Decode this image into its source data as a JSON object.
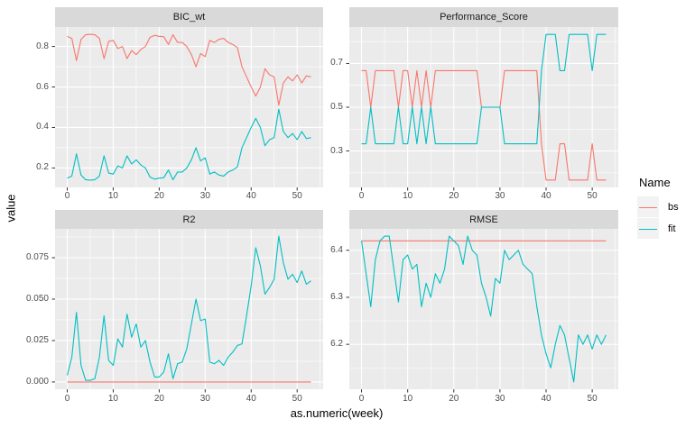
{
  "figure": {
    "x_axis_title": "as.numeric(week)",
    "y_axis_title": "value"
  },
  "colors": {
    "panel_background": "#EBEBEB",
    "strip_background": "#D9D9D9",
    "grid": "#FFFFFF",
    "tick_mark": "#333333",
    "axis_text": "#4D4D4D",
    "series_bs": "#F8766D",
    "series_fit": "#00BFC4"
  },
  "chart_data": {
    "type": "line",
    "x_label": "as.numeric(week)",
    "y_label": "value",
    "legend_position": "right",
    "grid": true,
    "legend": {
      "title": "Name",
      "series": [
        {
          "label": "bs",
          "color": "#F8766D"
        },
        {
          "label": "fit",
          "color": "#00BFC4"
        }
      ]
    },
    "x": [
      0,
      1,
      2,
      3,
      4,
      5,
      6,
      7,
      8,
      9,
      10,
      11,
      12,
      13,
      14,
      15,
      16,
      17,
      18,
      19,
      20,
      21,
      22,
      23,
      24,
      25,
      26,
      27,
      28,
      29,
      30,
      31,
      32,
      33,
      34,
      35,
      36,
      37,
      38,
      39,
      40,
      41,
      42,
      43,
      44,
      45,
      46,
      47,
      48,
      49,
      50,
      51,
      52,
      53
    ],
    "xlim": [
      -2.65,
      55.65
    ],
    "xticks": [
      0,
      10,
      20,
      30,
      40,
      50
    ],
    "xtick_labels": [
      "0",
      "10",
      "20",
      "30",
      "40",
      "50"
    ],
    "xminor": [
      5,
      15,
      25,
      35,
      45,
      55
    ],
    "facets": [
      {
        "title": "BIC_wt",
        "ylim": [
          0.104,
          0.896
        ],
        "yticks": [
          0.2,
          0.4,
          0.6,
          0.8
        ],
        "ytick_labels": [
          "0.2",
          "0.4",
          "0.6",
          "0.8"
        ],
        "yminor": [
          0.1,
          0.3,
          0.5,
          0.7
        ],
        "series": {
          "bs": [
            0.85,
            0.84,
            0.73,
            0.835,
            0.858,
            0.86,
            0.858,
            0.84,
            0.74,
            0.825,
            0.83,
            0.79,
            0.8,
            0.74,
            0.78,
            0.76,
            0.785,
            0.8,
            0.845,
            0.855,
            0.85,
            0.848,
            0.81,
            0.858,
            0.82,
            0.82,
            0.8,
            0.76,
            0.7,
            0.765,
            0.75,
            0.83,
            0.82,
            0.835,
            0.84,
            0.82,
            0.81,
            0.795,
            0.7,
            0.65,
            0.6,
            0.555,
            0.6,
            0.69,
            0.66,
            0.65,
            0.51,
            0.62,
            0.65,
            0.63,
            0.66,
            0.62,
            0.655,
            0.65
          ],
          "fit": [
            0.15,
            0.16,
            0.27,
            0.165,
            0.142,
            0.14,
            0.142,
            0.16,
            0.26,
            0.175,
            0.17,
            0.21,
            0.2,
            0.26,
            0.22,
            0.24,
            0.215,
            0.2,
            0.155,
            0.145,
            0.15,
            0.152,
            0.19,
            0.142,
            0.18,
            0.18,
            0.2,
            0.24,
            0.3,
            0.235,
            0.25,
            0.17,
            0.18,
            0.165,
            0.16,
            0.18,
            0.19,
            0.205,
            0.3,
            0.35,
            0.4,
            0.445,
            0.4,
            0.31,
            0.34,
            0.35,
            0.49,
            0.38,
            0.35,
            0.37,
            0.34,
            0.38,
            0.345,
            0.35
          ]
        }
      },
      {
        "title": "Performance_Score",
        "ylim": [
          0.1333,
          0.8667
        ],
        "yticks": [
          0.3,
          0.5,
          0.7
        ],
        "ytick_labels": [
          "0.3",
          "0.5",
          "0.7"
        ],
        "yminor": [
          0.2,
          0.4,
          0.6,
          0.8
        ],
        "series": {
          "bs": [
            0.667,
            0.667,
            0.5,
            0.667,
            0.667,
            0.667,
            0.667,
            0.667,
            0.5,
            0.667,
            0.667,
            0.5,
            0.667,
            0.5,
            0.667,
            0.5,
            0.667,
            0.667,
            0.667,
            0.667,
            0.667,
            0.667,
            0.667,
            0.667,
            0.667,
            0.667,
            0.5,
            0.5,
            0.5,
            0.5,
            0.5,
            0.667,
            0.667,
            0.667,
            0.667,
            0.667,
            0.667,
            0.667,
            0.667,
            0.333,
            0.167,
            0.167,
            0.167,
            0.333,
            0.333,
            0.167,
            0.167,
            0.167,
            0.167,
            0.167,
            0.333,
            0.167,
            0.167,
            0.167
          ],
          "fit": [
            0.333,
            0.333,
            0.5,
            0.333,
            0.333,
            0.333,
            0.333,
            0.333,
            0.5,
            0.333,
            0.333,
            0.5,
            0.333,
            0.5,
            0.333,
            0.5,
            0.333,
            0.333,
            0.333,
            0.333,
            0.333,
            0.333,
            0.333,
            0.333,
            0.333,
            0.333,
            0.5,
            0.5,
            0.5,
            0.5,
            0.5,
            0.333,
            0.333,
            0.333,
            0.333,
            0.333,
            0.333,
            0.333,
            0.333,
            0.667,
            0.833,
            0.833,
            0.833,
            0.667,
            0.667,
            0.833,
            0.833,
            0.833,
            0.833,
            0.833,
            0.667,
            0.833,
            0.833,
            0.833
          ]
        }
      },
      {
        "title": "R2",
        "ylim": [
          -0.0044,
          0.0924
        ],
        "yticks": [
          0,
          0.025,
          0.05,
          0.075
        ],
        "ytick_labels": [
          "0.000",
          "0.025",
          "0.050",
          "0.075"
        ],
        "yminor": [
          0.0125,
          0.0375,
          0.0625,
          0.0875
        ],
        "series": {
          "bs": [
            0,
            0,
            0,
            0,
            0,
            0,
            0,
            0,
            0,
            0,
            0,
            0,
            0,
            0,
            0,
            0,
            0,
            0,
            0,
            0,
            0,
            0,
            0,
            0,
            0,
            0,
            0,
            0,
            0,
            0,
            0,
            0,
            0,
            0,
            0,
            0,
            0,
            0,
            0,
            0,
            0,
            0,
            0,
            0,
            0,
            0,
            0,
            0,
            0,
            0,
            0,
            0,
            0,
            0
          ],
          "fit": [
            0.004,
            0.015,
            0.042,
            0.01,
            0.001,
            0.001,
            0.002,
            0.015,
            0.04,
            0.013,
            0.01,
            0.026,
            0.021,
            0.041,
            0.027,
            0.035,
            0.021,
            0.025,
            0.012,
            0.003,
            0.003,
            0.006,
            0.017,
            0.002,
            0.011,
            0.012,
            0.02,
            0.035,
            0.05,
            0.037,
            0.038,
            0.012,
            0.011,
            0.013,
            0.01,
            0.015,
            0.018,
            0.022,
            0.023,
            0.04,
            0.058,
            0.081,
            0.07,
            0.053,
            0.057,
            0.062,
            0.088,
            0.072,
            0.062,
            0.065,
            0.06,
            0.067,
            0.059,
            0.061
          ]
        }
      },
      {
        "title": "RMSE",
        "ylim": [
          6.1045,
          6.4455
        ],
        "yticks": [
          6.2,
          6.3,
          6.4
        ],
        "ytick_labels": [
          "6.2",
          "6.3",
          "6.4"
        ],
        "yminor": [
          6.15,
          6.25,
          6.35
        ],
        "series": {
          "bs": [
            6.42,
            6.42,
            6.42,
            6.42,
            6.42,
            6.42,
            6.42,
            6.42,
            6.42,
            6.42,
            6.42,
            6.42,
            6.42,
            6.42,
            6.42,
            6.42,
            6.42,
            6.42,
            6.42,
            6.42,
            6.42,
            6.42,
            6.42,
            6.42,
            6.42,
            6.42,
            6.42,
            6.42,
            6.42,
            6.42,
            6.42,
            6.42,
            6.42,
            6.42,
            6.42,
            6.42,
            6.42,
            6.42,
            6.42,
            6.42,
            6.42,
            6.42,
            6.42,
            6.42,
            6.42,
            6.42,
            6.42,
            6.42,
            6.42,
            6.42,
            6.42,
            6.42,
            6.42,
            6.42
          ],
          "fit": [
            6.42,
            6.35,
            6.28,
            6.38,
            6.42,
            6.43,
            6.43,
            6.36,
            6.29,
            6.38,
            6.39,
            6.36,
            6.37,
            6.28,
            6.33,
            6.3,
            6.35,
            6.33,
            6.36,
            6.43,
            6.42,
            6.41,
            6.37,
            6.43,
            6.4,
            6.39,
            6.33,
            6.3,
            6.26,
            6.34,
            6.33,
            6.4,
            6.38,
            6.39,
            6.4,
            6.37,
            6.36,
            6.35,
            6.28,
            6.22,
            6.18,
            6.15,
            6.2,
            6.24,
            6.22,
            6.17,
            6.12,
            6.22,
            6.2,
            6.22,
            6.19,
            6.22,
            6.2,
            6.22
          ]
        }
      }
    ]
  }
}
